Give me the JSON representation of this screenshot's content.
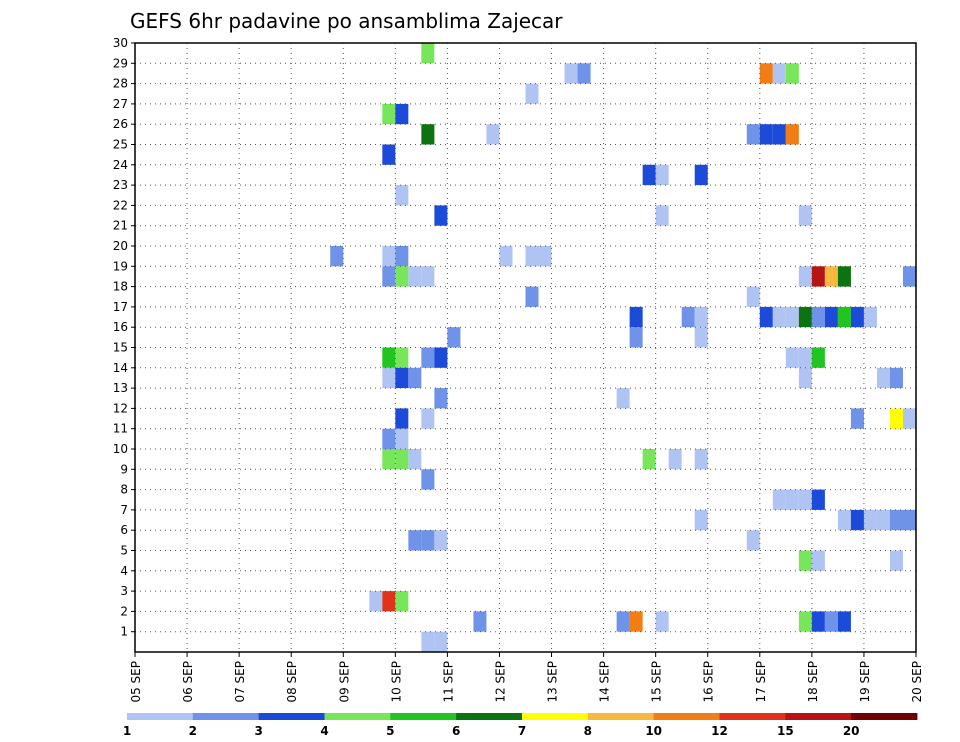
{
  "chart_data": {
    "type": "heatmap",
    "title": "GEFS 6hr padavine po ansamblima Zajecar",
    "xlabel": "",
    "ylabel": "",
    "x_ticks": [
      "05 SEP",
      "06 SEP",
      "07 SEP",
      "08 SEP",
      "09 SEP",
      "10 SEP",
      "11 SEP",
      "12 SEP",
      "13 SEP",
      "14 SEP",
      "15 SEP",
      "16 SEP",
      "17 SEP",
      "18 SEP",
      "19 SEP",
      "20 SEP"
    ],
    "y_ticks": [
      "1",
      "2",
      "3",
      "4",
      "5",
      "6",
      "7",
      "8",
      "9",
      "10",
      "11",
      "12",
      "13",
      "14",
      "15",
      "16",
      "17",
      "18",
      "19",
      "20",
      "21",
      "22",
      "23",
      "24",
      "25",
      "26",
      "27",
      "28",
      "29",
      "30"
    ],
    "xlim_days": [
      5,
      20
    ],
    "ylim": [
      0,
      30
    ],
    "grid": true,
    "colorbar": {
      "position": "bottom",
      "colors": [
        "#b0c4f4",
        "#6f93e8",
        "#1c4ad9",
        "#78e65a",
        "#22c422",
        "#0b7310",
        "#ffff00",
        "#f7b93c",
        "#f27d15",
        "#e0331c",
        "#b81414",
        "#720000"
      ],
      "labels": [
        "1",
        "2",
        "3",
        "4",
        "5",
        "6",
        "7",
        "8",
        "10",
        "12",
        "15",
        "20"
      ]
    },
    "cells": [
      {
        "member": 30,
        "day": 10.5,
        "color": "#78e65a"
      },
      {
        "member": 29,
        "day": 13.25,
        "color": "#b0c4f4"
      },
      {
        "member": 29,
        "day": 13.5,
        "color": "#6f93e8"
      },
      {
        "member": 29,
        "day": 17.0,
        "color": "#f27d15"
      },
      {
        "member": 29,
        "day": 17.25,
        "color": "#b0c4f4"
      },
      {
        "member": 29,
        "day": 17.5,
        "color": "#78e65a"
      },
      {
        "member": 28,
        "day": 12.5,
        "color": "#b0c4f4"
      },
      {
        "member": 27,
        "day": 9.75,
        "color": "#78e65a"
      },
      {
        "member": 27,
        "day": 10.0,
        "color": "#1c4ad9"
      },
      {
        "member": 26,
        "day": 10.5,
        "color": "#0b7310"
      },
      {
        "member": 26,
        "day": 11.75,
        "color": "#b0c4f4"
      },
      {
        "member": 26,
        "day": 16.75,
        "color": "#6f93e8"
      },
      {
        "member": 26,
        "day": 17.0,
        "color": "#1c4ad9"
      },
      {
        "member": 26,
        "day": 17.25,
        "color": "#1c4ad9"
      },
      {
        "member": 26,
        "day": 17.5,
        "color": "#f27d15"
      },
      {
        "member": 25,
        "day": 9.75,
        "color": "#1c4ad9"
      },
      {
        "member": 24,
        "day": 14.75,
        "color": "#1c4ad9"
      },
      {
        "member": 24,
        "day": 15.0,
        "color": "#b0c4f4"
      },
      {
        "member": 24,
        "day": 15.75,
        "color": "#1c4ad9"
      },
      {
        "member": 23,
        "day": 10.0,
        "color": "#b0c4f4"
      },
      {
        "member": 22,
        "day": 10.75,
        "color": "#1c4ad9"
      },
      {
        "member": 22,
        "day": 15.0,
        "color": "#b0c4f4"
      },
      {
        "member": 22,
        "day": 17.75,
        "color": "#b0c4f4"
      },
      {
        "member": 20,
        "day": 8.75,
        "color": "#6f93e8"
      },
      {
        "member": 20,
        "day": 9.75,
        "color": "#b0c4f4"
      },
      {
        "member": 20,
        "day": 10.0,
        "color": "#6f93e8"
      },
      {
        "member": 20,
        "day": 12.0,
        "color": "#b0c4f4"
      },
      {
        "member": 20,
        "day": 12.5,
        "color": "#b0c4f4"
      },
      {
        "member": 20,
        "day": 12.75,
        "color": "#b0c4f4"
      },
      {
        "member": 19,
        "day": 9.75,
        "color": "#6f93e8"
      },
      {
        "member": 19,
        "day": 10.0,
        "color": "#78e65a"
      },
      {
        "member": 19,
        "day": 10.25,
        "color": "#b0c4f4"
      },
      {
        "member": 19,
        "day": 10.5,
        "color": "#b0c4f4"
      },
      {
        "member": 19,
        "day": 17.75,
        "color": "#b0c4f4"
      },
      {
        "member": 19,
        "day": 18.0,
        "color": "#b81414"
      },
      {
        "member": 19,
        "day": 18.25,
        "color": "#f7b93c"
      },
      {
        "member": 19,
        "day": 18.5,
        "color": "#0b7310"
      },
      {
        "member": 19,
        "day": 19.75,
        "color": "#6f93e8"
      },
      {
        "member": 18,
        "day": 12.5,
        "color": "#6f93e8"
      },
      {
        "member": 18,
        "day": 16.75,
        "color": "#b0c4f4"
      },
      {
        "member": 17,
        "day": 14.5,
        "color": "#1c4ad9"
      },
      {
        "member": 17,
        "day": 15.5,
        "color": "#6f93e8"
      },
      {
        "member": 17,
        "day": 15.75,
        "color": "#b0c4f4"
      },
      {
        "member": 17,
        "day": 17.0,
        "color": "#1c4ad9"
      },
      {
        "member": 17,
        "day": 17.25,
        "color": "#b0c4f4"
      },
      {
        "member": 17,
        "day": 17.5,
        "color": "#b0c4f4"
      },
      {
        "member": 17,
        "day": 17.75,
        "color": "#0b7310"
      },
      {
        "member": 17,
        "day": 18.0,
        "color": "#6f93e8"
      },
      {
        "member": 17,
        "day": 18.25,
        "color": "#1c4ad9"
      },
      {
        "member": 17,
        "day": 18.5,
        "color": "#22c422"
      },
      {
        "member": 17,
        "day": 18.75,
        "color": "#1c4ad9"
      },
      {
        "member": 17,
        "day": 19.0,
        "color": "#b0c4f4"
      },
      {
        "member": 16,
        "day": 11.0,
        "color": "#6f93e8"
      },
      {
        "member": 16,
        "day": 14.5,
        "color": "#6f93e8"
      },
      {
        "member": 16,
        "day": 15.75,
        "color": "#b0c4f4"
      },
      {
        "member": 15,
        "day": 9.75,
        "color": "#22c422"
      },
      {
        "member": 15,
        "day": 10.0,
        "color": "#78e65a"
      },
      {
        "member": 15,
        "day": 10.5,
        "color": "#6f93e8"
      },
      {
        "member": 15,
        "day": 10.75,
        "color": "#1c4ad9"
      },
      {
        "member": 15,
        "day": 17.5,
        "color": "#b0c4f4"
      },
      {
        "member": 15,
        "day": 17.75,
        "color": "#b0c4f4"
      },
      {
        "member": 15,
        "day": 18.0,
        "color": "#22c422"
      },
      {
        "member": 14,
        "day": 9.75,
        "color": "#b0c4f4"
      },
      {
        "member": 14,
        "day": 10.0,
        "color": "#1c4ad9"
      },
      {
        "member": 14,
        "day": 10.25,
        "color": "#6f93e8"
      },
      {
        "member": 14,
        "day": 17.75,
        "color": "#b0c4f4"
      },
      {
        "member": 14,
        "day": 19.25,
        "color": "#b0c4f4"
      },
      {
        "member": 14,
        "day": 19.5,
        "color": "#6f93e8"
      },
      {
        "member": 13,
        "day": 10.75,
        "color": "#6f93e8"
      },
      {
        "member": 13,
        "day": 14.25,
        "color": "#b0c4f4"
      },
      {
        "member": 12,
        "day": 10.0,
        "color": "#1c4ad9"
      },
      {
        "member": 12,
        "day": 10.5,
        "color": "#b0c4f4"
      },
      {
        "member": 12,
        "day": 18.75,
        "color": "#6f93e8"
      },
      {
        "member": 12,
        "day": 19.5,
        "color": "#ffff00"
      },
      {
        "member": 12,
        "day": 19.75,
        "color": "#b0c4f4"
      },
      {
        "member": 11,
        "day": 9.75,
        "color": "#6f93e8"
      },
      {
        "member": 11,
        "day": 10.0,
        "color": "#b0c4f4"
      },
      {
        "member": 10,
        "day": 9.75,
        "color": "#78e65a"
      },
      {
        "member": 10,
        "day": 10.0,
        "color": "#78e65a"
      },
      {
        "member": 10,
        "day": 10.25,
        "color": "#b0c4f4"
      },
      {
        "member": 10,
        "day": 14.75,
        "color": "#78e65a"
      },
      {
        "member": 10,
        "day": 15.25,
        "color": "#b0c4f4"
      },
      {
        "member": 10,
        "day": 15.75,
        "color": "#b0c4f4"
      },
      {
        "member": 9,
        "day": 10.5,
        "color": "#6f93e8"
      },
      {
        "member": 8,
        "day": 17.25,
        "color": "#b0c4f4"
      },
      {
        "member": 8,
        "day": 17.5,
        "color": "#b0c4f4"
      },
      {
        "member": 8,
        "day": 17.75,
        "color": "#b0c4f4"
      },
      {
        "member": 8,
        "day": 18.0,
        "color": "#1c4ad9"
      },
      {
        "member": 7,
        "day": 15.75,
        "color": "#b0c4f4"
      },
      {
        "member": 7,
        "day": 18.5,
        "color": "#b0c4f4"
      },
      {
        "member": 7,
        "day": 18.75,
        "color": "#1c4ad9"
      },
      {
        "member": 7,
        "day": 19.0,
        "color": "#b0c4f4"
      },
      {
        "member": 7,
        "day": 19.25,
        "color": "#b0c4f4"
      },
      {
        "member": 7,
        "day": 19.5,
        "color": "#6f93e8"
      },
      {
        "member": 7,
        "day": 19.75,
        "color": "#6f93e8"
      },
      {
        "member": 6,
        "day": 10.25,
        "color": "#6f93e8"
      },
      {
        "member": 6,
        "day": 10.5,
        "color": "#6f93e8"
      },
      {
        "member": 6,
        "day": 10.75,
        "color": "#b0c4f4"
      },
      {
        "member": 6,
        "day": 16.75,
        "color": "#b0c4f4"
      },
      {
        "member": 5,
        "day": 17.75,
        "color": "#78e65a"
      },
      {
        "member": 5,
        "day": 18.0,
        "color": "#b0c4f4"
      },
      {
        "member": 5,
        "day": 19.5,
        "color": "#b0c4f4"
      },
      {
        "member": 3,
        "day": 9.5,
        "color": "#b0c4f4"
      },
      {
        "member": 3,
        "day": 9.75,
        "color": "#e0331c"
      },
      {
        "member": 3,
        "day": 10.0,
        "color": "#78e65a"
      },
      {
        "member": 2,
        "day": 11.5,
        "color": "#6f93e8"
      },
      {
        "member": 2,
        "day": 14.25,
        "color": "#6f93e8"
      },
      {
        "member": 2,
        "day": 14.5,
        "color": "#f27d15"
      },
      {
        "member": 2,
        "day": 15.0,
        "color": "#b0c4f4"
      },
      {
        "member": 2,
        "day": 17.75,
        "color": "#78e65a"
      },
      {
        "member": 2,
        "day": 18.0,
        "color": "#1c4ad9"
      },
      {
        "member": 2,
        "day": 18.25,
        "color": "#6f93e8"
      },
      {
        "member": 2,
        "day": 18.5,
        "color": "#1c4ad9"
      },
      {
        "member": 1,
        "day": 10.5,
        "color": "#b0c4f4"
      },
      {
        "member": 1,
        "day": 10.75,
        "color": "#b0c4f4"
      }
    ]
  }
}
